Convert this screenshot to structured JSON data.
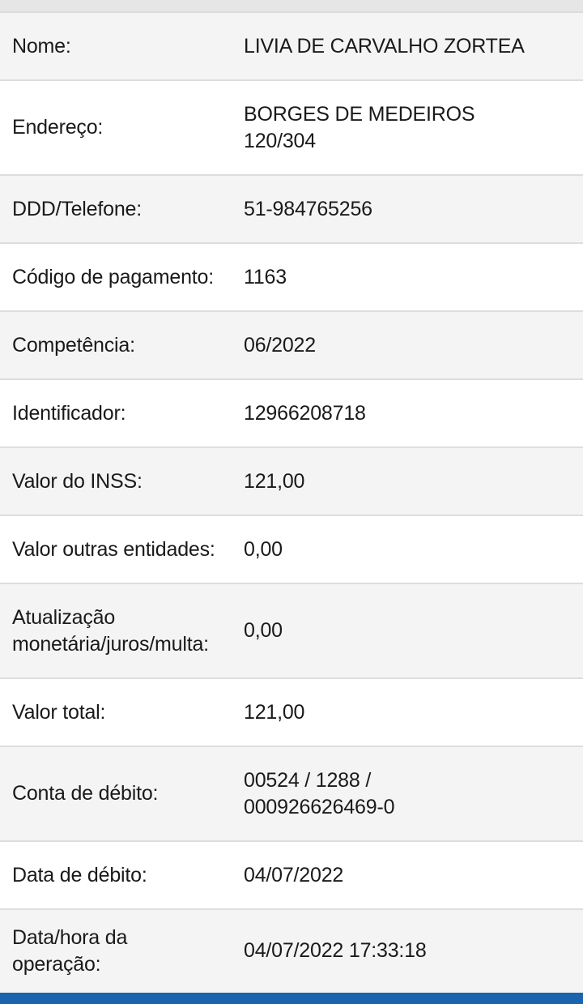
{
  "colors": {
    "row_alt": "#f5f4f5",
    "row": "#ffffff",
    "bottom_bar": "#1b63ad"
  },
  "rows": [
    {
      "label": "Nome:",
      "value": "LIVIA DE CARVALHO ZORTEA"
    },
    {
      "label": "Endereço:",
      "value": "BORGES DE MEDEIROS 120/304"
    },
    {
      "label": "DDD/Telefone:",
      "value": "51-984765256"
    },
    {
      "label": "Código de pagamento:",
      "value": "1163"
    },
    {
      "label": "Competência:",
      "value": "06/2022"
    },
    {
      "label": "Identificador:",
      "value": "12966208718"
    },
    {
      "label": "Valor do INSS:",
      "value": "121,00"
    },
    {
      "label": "Valor outras entidades:",
      "value": "0,00"
    },
    {
      "label": "Atualização monetária/juros/multa:",
      "value": "0,00"
    },
    {
      "label": "Valor total:",
      "value": "121,00"
    },
    {
      "label": "Conta de débito:",
      "value": "00524 / 1288 / 000926626469-0"
    },
    {
      "label": "Data de débito:",
      "value": "04/07/2022"
    },
    {
      "label": "Data/hora da operação:",
      "value": "04/07/2022 17:33:18"
    }
  ]
}
